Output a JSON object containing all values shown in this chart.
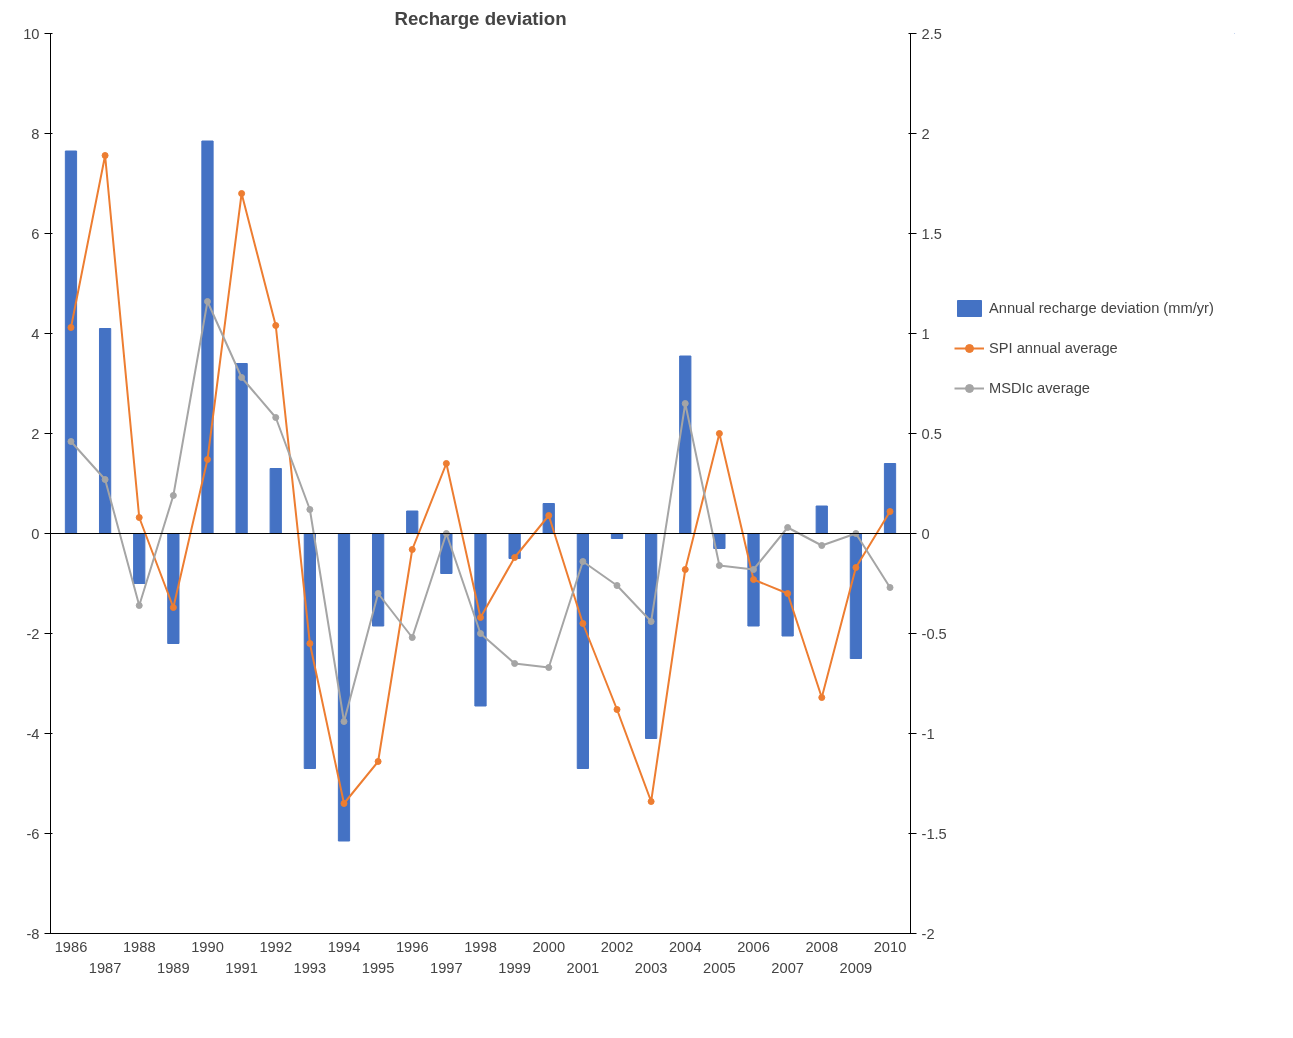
{
  "chart_data": {
    "type": "bar",
    "title": "Recharge deviation",
    "categories": [
      "1986",
      "1987",
      "1988",
      "1989",
      "1990",
      "1991",
      "1992",
      "1993",
      "1994",
      "1995",
      "1996",
      "1997",
      "1998",
      "1999",
      "2000",
      "2001",
      "2002",
      "2003",
      "2004",
      "2005",
      "2006",
      "2007",
      "2008",
      "2009",
      "2010"
    ],
    "series": [
      {
        "name": "Annual recharge deviation (mm/yr)",
        "color": "#4472c4",
        "values": [
          7.65,
          4.1,
          -1.0,
          -2.2,
          7.85,
          3.4,
          1.3,
          -4.7,
          -6.15,
          -1.85,
          0.45,
          -0.8,
          -3.45,
          -0.5,
          0.6,
          -4.7,
          -0.1,
          -4.1,
          3.55,
          -0.3,
          -1.85,
          -2.05,
          0.55,
          -2.5,
          1.4
        ]
      },
      {
        "name": "SPI annual average",
        "type": "line",
        "axis": "y2",
        "color": "#ed7d31",
        "marker": "circle",
        "values": [
          1.03,
          1.89,
          0.08,
          -0.37,
          0.37,
          1.7,
          1.04,
          -0.55,
          -1.35,
          -1.14,
          -0.08,
          0.35,
          -0.42,
          -0.12,
          0.09,
          -0.45,
          -0.88,
          -1.34,
          -0.18,
          0.5,
          -0.23,
          -0.3,
          -0.82,
          -0.17,
          0.11
        ]
      },
      {
        "name": "MSDIc average",
        "type": "line",
        "axis": "y2",
        "color": "#a5a5a5",
        "marker": "circle",
        "values": [
          0.46,
          0.27,
          -0.36,
          0.19,
          1.16,
          0.78,
          0.58,
          0.12,
          -0.94,
          -0.3,
          -0.52,
          0.0,
          -0.5,
          -0.65,
          -0.67,
          -0.14,
          -0.26,
          -0.44,
          0.65,
          -0.16,
          -0.18,
          0.03,
          -0.06,
          0.0,
          -0.27
        ]
      }
    ],
    "ylim": [
      -8,
      10
    ],
    "yticks": [
      -8,
      -6,
      -4,
      -2,
      0,
      2,
      4,
      6,
      8,
      10
    ],
    "y2lim": [
      -2,
      2.5
    ],
    "y2ticks": [
      -2,
      -1.5,
      -1,
      -0.5,
      0,
      0.5,
      1,
      1.5,
      2,
      2.5
    ],
    "ref_lines": [
      {
        "axis": "y",
        "value": 0,
        "color": "#000000"
      }
    ],
    "grid": false,
    "legend": "right"
  }
}
